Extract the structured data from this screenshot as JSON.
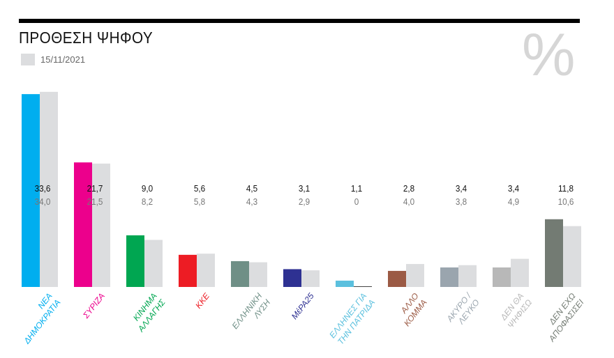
{
  "header": {
    "title": "ΠΡΟΘΕΣΗ ΨΗΦΟΥ",
    "legend_date": "15/11/2021",
    "unit_symbol": "%"
  },
  "chart_data": {
    "type": "bar",
    "title": "ΠΡΟΘΕΣΗ ΨΗΦΟΥ",
    "unit": "%",
    "ylim": [
      0,
      34
    ],
    "grid": false,
    "legend_placement": "top-left",
    "comparison_color": "#dcdddf",
    "categories": [
      {
        "lines": [
          "ΝΕΑ",
          "ΔΗΜΟΚΡΑΤΙΑ"
        ],
        "color": "#00aeef"
      },
      {
        "lines": [
          "ΣΥΡΙΖΑ",
          ""
        ],
        "color": "#ec008c"
      },
      {
        "lines": [
          "ΚΙΝΗΜΑ",
          "ΑΛΛΑΓΗΣ"
        ],
        "color": "#00a651"
      },
      {
        "lines": [
          "ΚΚΕ",
          ""
        ],
        "color": "#ed1c24"
      },
      {
        "lines": [
          "ΕΛΛΗΝΙΚΗ",
          "ΛΥΣΗ"
        ],
        "color": "#6f8f86"
      },
      {
        "lines": [
          "ΜέΡΑ25",
          ""
        ],
        "color": "#2e3192"
      },
      {
        "lines": [
          "ΕΛΛΗΝΕΣ ΓΙΑ",
          "ΤΗΝ ΠΑΤΡΙΔΑ"
        ],
        "color": "#5bc0de"
      },
      {
        "lines": [
          "ΑΛΛΟ",
          "ΚΟΜΜΑ"
        ],
        "color": "#9b5a44"
      },
      {
        "lines": [
          "ΑΚΥΡΟ /",
          "ΛΕΥΚΟ"
        ],
        "color": "#9aa5ae"
      },
      {
        "lines": [
          "ΔΕΝ ΘΑ",
          "ΨΗΦΙΣΩ"
        ],
        "color": "#b8b8b8"
      },
      {
        "lines": [
          "ΔΕΝ ΕΧΩ",
          "ΑΠΟΦΑΣΙΣΕΙ"
        ],
        "color": "#737b73"
      }
    ],
    "series": [
      {
        "values": [
          33.6,
          21.7,
          9.0,
          5.6,
          4.5,
          3.1,
          1.1,
          2.8,
          3.4,
          3.4,
          11.8
        ],
        "labels": [
          "33,6",
          "21,7",
          "9,0",
          "5,6",
          "4,5",
          "3,1",
          "1,1",
          "2,8",
          "3,4",
          "3,4",
          "11,8"
        ]
      },
      {
        "name": "15/11/2021",
        "values": [
          34.0,
          21.5,
          8.2,
          5.8,
          4.3,
          2.9,
          0,
          4.0,
          3.8,
          4.9,
          10.6
        ],
        "labels": [
          "34,0",
          "21,5",
          "8,2",
          "5,8",
          "4,3",
          "2,9",
          "0",
          "4,0",
          "3,8",
          "4,9",
          "10,6"
        ]
      }
    ]
  }
}
